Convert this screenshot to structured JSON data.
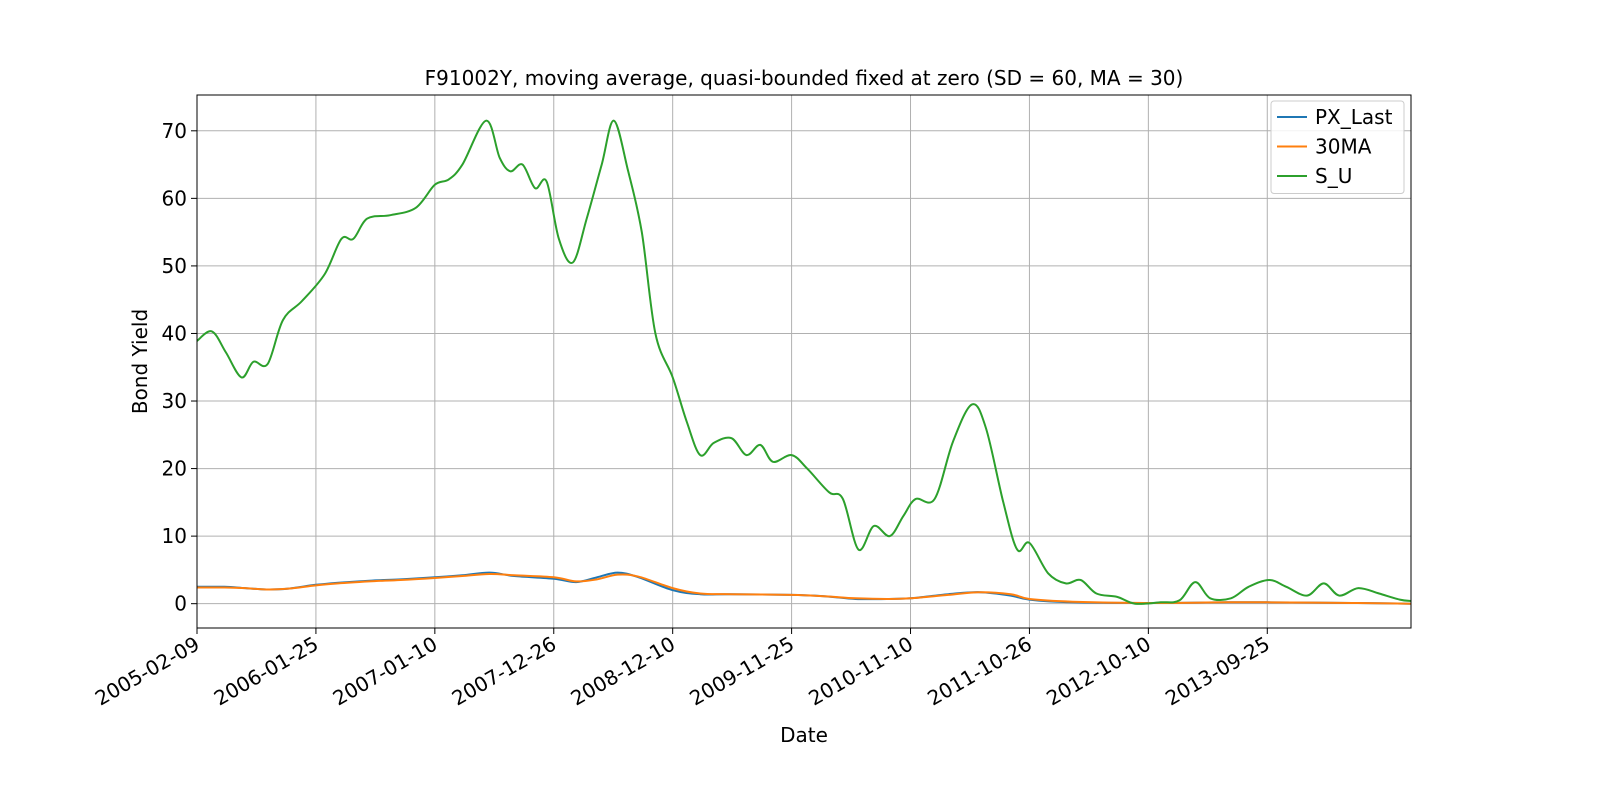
{
  "chart_data": {
    "type": "line",
    "title": "F91002Y, moving average, quasi-bounded fixed at zero (SD = 60, MA = 30)",
    "xlabel": "Date",
    "ylabel": "Bond Yield",
    "xlim": [
      "2005-02-09",
      "2014-11-22"
    ],
    "ylim": [
      -3.6,
      75.3
    ],
    "x_ticks": [
      "2005-02-09",
      "2006-01-25",
      "2007-01-10",
      "2007-12-26",
      "2008-12-10",
      "2009-11-25",
      "2010-11-10",
      "2011-10-26",
      "2012-10-10",
      "2013-09-25"
    ],
    "y_ticks": [
      0,
      10,
      20,
      30,
      40,
      50,
      60,
      70
    ],
    "grid": true,
    "legend": "upper-right",
    "series": [
      {
        "name": "PX_Last",
        "color": "#1f77b4",
        "points": [
          [
            "2005-02-09",
            2.5
          ],
          [
            "2005-05-01",
            2.5
          ],
          [
            "2005-07-01",
            2.3
          ],
          [
            "2005-09-01",
            2.1
          ],
          [
            "2005-11-01",
            2.2
          ],
          [
            "2006-01-25",
            2.8
          ],
          [
            "2006-04-01",
            3.1
          ],
          [
            "2006-07-01",
            3.4
          ],
          [
            "2006-10-01",
            3.6
          ],
          [
            "2007-01-10",
            3.9
          ],
          [
            "2007-04-01",
            4.2
          ],
          [
            "2007-06-20",
            4.6
          ],
          [
            "2007-09-01",
            4.1
          ],
          [
            "2007-12-26",
            3.7
          ],
          [
            "2008-03-01",
            3.2
          ],
          [
            "2008-05-01",
            3.9
          ],
          [
            "2008-07-01",
            4.6
          ],
          [
            "2008-09-01",
            3.9
          ],
          [
            "2008-12-10",
            2.0
          ],
          [
            "2009-03-01",
            1.4
          ],
          [
            "2009-06-01",
            1.4
          ],
          [
            "2009-11-25",
            1.3
          ],
          [
            "2010-03-01",
            1.1
          ],
          [
            "2010-06-01",
            0.7
          ],
          [
            "2010-09-01",
            0.7
          ],
          [
            "2010-11-10",
            0.8
          ],
          [
            "2011-03-01",
            1.4
          ],
          [
            "2011-06-01",
            1.7
          ],
          [
            "2011-09-01",
            1.2
          ],
          [
            "2011-10-26",
            0.6
          ],
          [
            "2012-03-01",
            0.2
          ],
          [
            "2012-10-10",
            0.1
          ],
          [
            "2013-06-01",
            0.2
          ],
          [
            "2013-09-25",
            0.2
          ],
          [
            "2014-06-01",
            0.1
          ],
          [
            "2014-11-22",
            0.0
          ]
        ]
      },
      {
        "name": "30MA",
        "color": "#ff7f0e",
        "points": [
          [
            "2005-02-09",
            2.4
          ],
          [
            "2005-05-01",
            2.4
          ],
          [
            "2005-07-01",
            2.3
          ],
          [
            "2005-09-01",
            2.1
          ],
          [
            "2005-11-01",
            2.2
          ],
          [
            "2006-01-25",
            2.7
          ],
          [
            "2006-04-01",
            3.0
          ],
          [
            "2006-07-01",
            3.3
          ],
          [
            "2006-10-01",
            3.5
          ],
          [
            "2007-01-10",
            3.8
          ],
          [
            "2007-04-01",
            4.1
          ],
          [
            "2007-06-20",
            4.4
          ],
          [
            "2007-09-01",
            4.2
          ],
          [
            "2007-12-26",
            3.9
          ],
          [
            "2008-03-01",
            3.3
          ],
          [
            "2008-05-01",
            3.6
          ],
          [
            "2008-07-01",
            4.3
          ],
          [
            "2008-09-01",
            4.0
          ],
          [
            "2008-12-10",
            2.3
          ],
          [
            "2009-03-01",
            1.5
          ],
          [
            "2009-06-01",
            1.4
          ],
          [
            "2009-11-25",
            1.3
          ],
          [
            "2010-03-01",
            1.1
          ],
          [
            "2010-06-01",
            0.8
          ],
          [
            "2010-09-01",
            0.7
          ],
          [
            "2010-11-10",
            0.8
          ],
          [
            "2011-03-01",
            1.3
          ],
          [
            "2011-06-01",
            1.7
          ],
          [
            "2011-09-01",
            1.4
          ],
          [
            "2011-10-26",
            0.7
          ],
          [
            "2012-03-01",
            0.3
          ],
          [
            "2012-10-10",
            0.1
          ],
          [
            "2013-06-01",
            0.2
          ],
          [
            "2013-09-25",
            0.2
          ],
          [
            "2014-06-01",
            0.1
          ],
          [
            "2014-11-22",
            0.0
          ]
        ]
      },
      {
        "name": "S_U",
        "color": "#2ca02c",
        "points": [
          [
            "2005-02-09",
            38.9
          ],
          [
            "2005-03-25",
            40.3
          ],
          [
            "2005-05-05",
            37.2
          ],
          [
            "2005-06-20",
            33.5
          ],
          [
            "2005-07-25",
            35.8
          ],
          [
            "2005-09-05",
            35.5
          ],
          [
            "2005-10-20",
            42.0
          ],
          [
            "2005-12-15",
            44.8
          ],
          [
            "2006-02-20",
            48.8
          ],
          [
            "2006-04-10",
            54.0
          ],
          [
            "2006-05-15",
            54.0
          ],
          [
            "2006-06-25",
            57.0
          ],
          [
            "2006-09-01",
            57.5
          ],
          [
            "2006-11-15",
            58.6
          ],
          [
            "2007-01-10",
            62.0
          ],
          [
            "2007-02-20",
            62.8
          ],
          [
            "2007-04-01",
            65.0
          ],
          [
            "2007-06-10",
            71.5
          ],
          [
            "2007-07-20",
            66.0
          ],
          [
            "2007-08-20",
            64.0
          ],
          [
            "2007-09-25",
            65.0
          ],
          [
            "2007-11-01",
            61.5
          ],
          [
            "2007-12-05",
            62.5
          ],
          [
            "2008-01-10",
            54.0
          ],
          [
            "2008-02-20",
            50.5
          ],
          [
            "2008-04-01",
            57.0
          ],
          [
            "2008-05-15",
            65.0
          ],
          [
            "2008-06-20",
            71.5
          ],
          [
            "2008-08-01",
            64.0
          ],
          [
            "2008-09-10",
            55.0
          ],
          [
            "2008-10-20",
            40.0
          ],
          [
            "2008-12-10",
            33.5
          ],
          [
            "2009-01-20",
            27.0
          ],
          [
            "2009-03-01",
            22.0
          ],
          [
            "2009-04-10",
            23.8
          ],
          [
            "2009-06-01",
            24.5
          ],
          [
            "2009-07-15",
            22.0
          ],
          [
            "2009-08-25",
            23.5
          ],
          [
            "2009-10-01",
            21.0
          ],
          [
            "2009-11-25",
            22.0
          ],
          [
            "2010-01-10",
            20.0
          ],
          [
            "2010-03-15",
            16.5
          ],
          [
            "2010-04-25",
            15.5
          ],
          [
            "2010-06-10",
            8.0
          ],
          [
            "2010-07-25",
            11.5
          ],
          [
            "2010-09-10",
            10.0
          ],
          [
            "2010-10-20",
            13.0
          ],
          [
            "2010-11-25",
            15.5
          ],
          [
            "2011-01-20",
            15.5
          ],
          [
            "2011-03-15",
            24.0
          ],
          [
            "2011-05-10",
            29.5
          ],
          [
            "2011-06-20",
            26.0
          ],
          [
            "2011-08-10",
            15.0
          ],
          [
            "2011-09-20",
            8.0
          ],
          [
            "2011-10-26",
            9.0
          ],
          [
            "2011-12-20",
            4.5
          ],
          [
            "2012-02-10",
            3.0
          ],
          [
            "2012-03-25",
            3.5
          ],
          [
            "2012-05-10",
            1.5
          ],
          [
            "2012-07-10",
            1.0
          ],
          [
            "2012-09-01",
            0.0
          ],
          [
            "2012-11-15",
            0.2
          ],
          [
            "2013-01-10",
            0.5
          ],
          [
            "2013-02-25",
            3.2
          ],
          [
            "2013-04-10",
            0.8
          ],
          [
            "2013-06-10",
            0.8
          ],
          [
            "2013-08-01",
            2.5
          ],
          [
            "2013-10-01",
            3.5
          ],
          [
            "2013-11-20",
            2.5
          ],
          [
            "2014-01-20",
            1.2
          ],
          [
            "2014-03-10",
            3.0
          ],
          [
            "2014-04-25",
            1.2
          ],
          [
            "2014-06-20",
            2.3
          ],
          [
            "2014-08-20",
            1.5
          ],
          [
            "2014-10-20",
            0.6
          ],
          [
            "2014-11-22",
            0.4
          ]
        ]
      }
    ]
  }
}
